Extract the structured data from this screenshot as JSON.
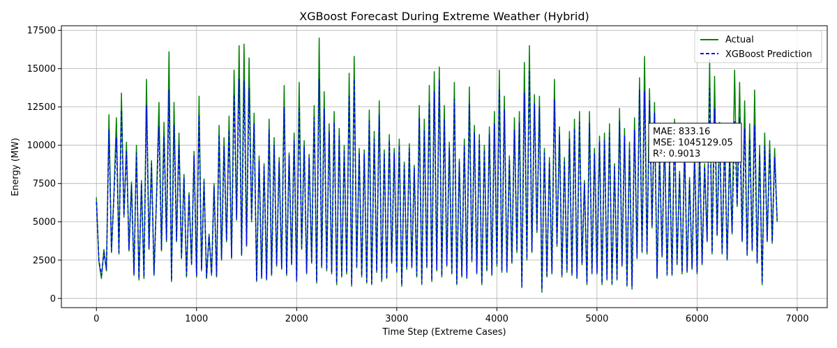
{
  "chart_data": {
    "type": "line",
    "title": "XGBoost Forecast During Extreme Weather (Hybrid)",
    "xlabel": "Time Step (Extreme Cases)",
    "ylabel": "Energy (MW)",
    "xlim": [
      -350,
      7300
    ],
    "ylim": [
      -600,
      17800
    ],
    "xticks": [
      0,
      1000,
      2000,
      3000,
      4000,
      5000,
      6000,
      7000
    ],
    "xtick_labels": [
      "0",
      "1000",
      "2000",
      "3000",
      "4000",
      "5000",
      "6000",
      "7000"
    ],
    "yticks": [
      0,
      2500,
      5000,
      7500,
      10000,
      12500,
      15000,
      17500
    ],
    "ytick_labels": [
      "0",
      "2500",
      "5000",
      "7500",
      "10000",
      "12500",
      "15000",
      "17500"
    ],
    "grid": true,
    "legend_position": "top-right",
    "series": [
      {
        "name": "Actual",
        "color": "#008000",
        "style": "solid",
        "x_start": 0,
        "x_step": 25,
        "values": [
          6600,
          2400,
          1300,
          3200,
          1800,
          12000,
          3000,
          6900,
          11800,
          2900,
          13400,
          5300,
          10200,
          3100,
          7600,
          1500,
          10000,
          1200,
          7700,
          1300,
          14300,
          3200,
          9000,
          1500,
          6600,
          12800,
          3100,
          11500,
          3700,
          16100,
          1100,
          12800,
          3700,
          10800,
          2600,
          8100,
          1400,
          6900,
          2200,
          9600,
          1400,
          13200,
          1800,
          7800,
          1300,
          4200,
          1500,
          7500,
          1400,
          11300,
          2500,
          10500,
          3700,
          11900,
          2600,
          14900,
          5100,
          16500,
          2800,
          16600,
          3400,
          15700,
          5000,
          12100,
          1100,
          9300,
          1300,
          8800,
          1200,
          11700,
          1500,
          10500,
          2100,
          9200,
          1900,
          13900,
          1500,
          9500,
          2200,
          10800,
          1100,
          14100,
          3200,
          10300,
          1600,
          9400,
          2300,
          12600,
          1000,
          17000,
          2000,
          13500,
          1800,
          11400,
          1600,
          12200,
          900,
          11100,
          1400,
          10000,
          1600,
          14700,
          800,
          15800,
          2000,
          9800,
          1400,
          9700,
          1000,
          12300,
          900,
          10900,
          1700,
          12900,
          1100,
          9700,
          1300,
          10700,
          2300,
          9800,
          1700,
          10400,
          800,
          8900,
          1900,
          10100,
          2000,
          8700,
          1400,
          12600,
          900,
          11700,
          2000,
          13900,
          1100,
          14800,
          1800,
          15100,
          1400,
          12600,
          2100,
          10200,
          1600,
          14100,
          900,
          9100,
          1400,
          10400,
          1300,
          13800,
          2400,
          11300,
          1600,
          10700,
          900,
          10000,
          1800,
          11200,
          1500,
          12200,
          2100,
          14900,
          1700,
          13200,
          1700,
          9300,
          2300,
          11800,
          3000,
          12200,
          700,
          15400,
          2500,
          16500,
          3000,
          13300,
          4300,
          13200,
          400,
          9800,
          1400,
          9200,
          1600,
          14300,
          3400,
          11200,
          1400,
          9200,
          1700,
          10900,
          1500,
          11700,
          1300,
          12200,
          2200,
          7700,
          900,
          12200,
          1600,
          9800,
          1600,
          10600,
          900,
          10800,
          1200,
          11400,
          900,
          8800,
          1200,
          12400,
          2100,
          11100,
          800,
          10200,
          600,
          11800,
          2600,
          14400,
          3000,
          15800,
          2900,
          13700,
          4600,
          12800,
          1300,
          9600,
          2700,
          10800,
          1500,
          9200,
          1500,
          11700,
          2200,
          8300,
          1600,
          10200,
          1700,
          7900,
          1900,
          9700,
          1600,
          9900,
          2200,
          8800,
          3700,
          15600,
          2900,
          14500,
          4100,
          11500,
          2900,
          10600,
          2500,
          9600,
          4200,
          14900,
          6000,
          14100,
          3700,
          12900,
          2800,
          11400,
          3100,
          13600,
          2300,
          10000,
          900,
          10800,
          3700,
          10300,
          3600,
          9800,
          5000
        ]
      },
      {
        "name": "XGBoost Prediction",
        "color": "#0000ff",
        "style": "dashed",
        "x_start": 0,
        "x_step": 25,
        "values": [
          6300,
          2500,
          1500,
          3000,
          1900,
          11000,
          3100,
          6700,
          10500,
          3000,
          12300,
          5400,
          9600,
          3200,
          7400,
          1600,
          9500,
          1300,
          7500,
          1400,
          12600,
          3300,
          8800,
          1600,
          6500,
          11200,
          3200,
          10600,
          3800,
          13600,
          1200,
          11300,
          3800,
          10000,
          2700,
          7900,
          1500,
          6800,
          2300,
          9300,
          1500,
          12000,
          1900,
          7600,
          1400,
          4100,
          1600,
          7300,
          1500,
          10700,
          2600,
          9900,
          3800,
          11000,
          2700,
          13300,
          5200,
          14300,
          2900,
          14200,
          3500,
          13700,
          5100,
          11400,
          1200,
          9000,
          1400,
          8600,
          1300,
          11000,
          1600,
          10000,
          2200,
          8900,
          2000,
          12500,
          1600,
          9300,
          2300,
          10300,
          1200,
          12400,
          3300,
          9900,
          1700,
          9200,
          2400,
          11800,
          1100,
          14300,
          2100,
          12400,
          1900,
          10900,
          1700,
          11500,
          1000,
          10600,
          1500,
          9700,
          1700,
          13300,
          900,
          14300,
          2100,
          9500,
          1500,
          9400,
          1100,
          11600,
          1000,
          10400,
          1800,
          12000,
          1200,
          9400,
          1400,
          10300,
          2400,
          9500,
          1800,
          10000,
          900,
          8700,
          2000,
          9800,
          2100,
          8500,
          1500,
          11800,
          1000,
          11000,
          2100,
          12800,
          1200,
          13500,
          1900,
          14300,
          1500,
          11700,
          2200,
          9800,
          1700,
          13000,
          1000,
          8900,
          1500,
          10000,
          1400,
          12700,
          2500,
          10800,
          1700,
          10300,
          1000,
          9700,
          1900,
          10700,
          1600,
          11400,
          2200,
          13600,
          1800,
          12300,
          1800,
          9000,
          2400,
          11000,
          3100,
          11500,
          800,
          13400,
          2600,
          14800,
          3100,
          12700,
          4400,
          12500,
          600,
          9500,
          1500,
          8900,
          1700,
          13000,
          3500,
          10700,
          1500,
          8900,
          1800,
          10400,
          1600,
          11100,
          1400,
          11500,
          2300,
          7500,
          1000,
          11400,
          1700,
          9500,
          1700,
          10200,
          1000,
          10300,
          1300,
          10800,
          1000,
          8600,
          1300,
          11600,
          2200,
          10600,
          900,
          9800,
          800,
          11000,
          2700,
          13600,
          3100,
          13500,
          3000,
          12900,
          4700,
          12100,
          1400,
          9300,
          2800,
          10400,
          1600,
          8900,
          1600,
          11000,
          2300,
          8100,
          1700,
          9800,
          1800,
          7700,
          2000,
          9400,
          1700,
          9600,
          2300,
          8600,
          3800,
          13700,
          3000,
          12400,
          4200,
          10700,
          3000,
          10100,
          2600,
          9300,
          4300,
          11600,
          6100,
          11800,
          3800,
          11100,
          2900,
          10400,
          3200,
          11300,
          2400,
          9400,
          1000,
          9900,
          3800,
          9700,
          3700,
          9200,
          5100
        ]
      }
    ],
    "annotation": {
      "lines": [
        "MAE: 833.16",
        "MSE: 1045129.05",
        "R²: 0.9013"
      ]
    }
  }
}
